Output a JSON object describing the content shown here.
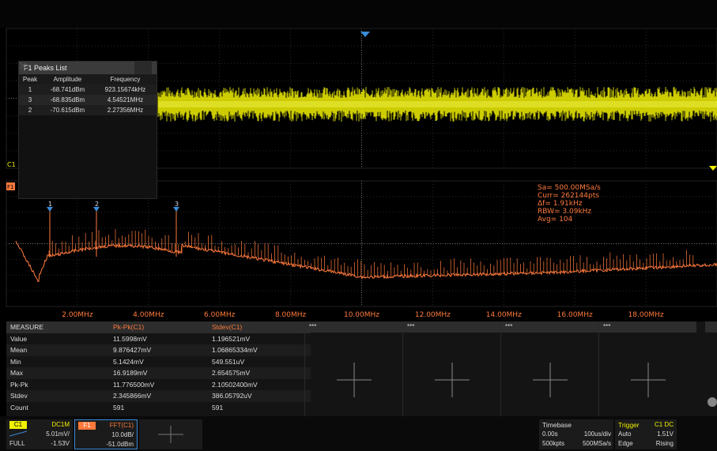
{
  "peaks_list": {
    "title": "F1 Peaks List",
    "columns": [
      "Peak",
      "Amplitude",
      "Frequency"
    ],
    "rows": [
      {
        "peak": "1",
        "amplitude": "-68.741dBm",
        "frequency": "923.15674kHz"
      },
      {
        "peak": "3",
        "amplitude": "-68.835dBm",
        "frequency": "4.54521MHz"
      },
      {
        "peak": "2",
        "amplitude": "-70.615dBm",
        "frequency": "2.27356MHz"
      }
    ]
  },
  "channel_markers": {
    "c1": "C1",
    "f1": "F1"
  },
  "fft_info": {
    "sa": "Sa= 500.00MSa/s",
    "curr": "Curr= 262144pts",
    "df": "Δf= 1.91kHz",
    "rbw": "RBW= 3.09kHz",
    "avg": "Avg= 104"
  },
  "peak_markers": [
    "1",
    "2",
    "3"
  ],
  "freq_axis": [
    "2.00MHz",
    "4.00MHz",
    "6.00MHz",
    "8.00MHz",
    "10.00MHz",
    "12.00MHz",
    "14.00MHz",
    "16.00MHz",
    "18.00MHz"
  ],
  "measure": {
    "header": [
      "MEASURE",
      "Pk-Pk(C1)",
      "Stdev(C1)"
    ],
    "rows": [
      [
        "Value",
        "11.5998mV",
        "1.196521mV"
      ],
      [
        "Mean",
        "9.876427mV",
        "1.06865334mV"
      ],
      [
        "Min",
        "5.1424mV",
        "549.551uV"
      ],
      [
        "Max",
        "16.9189mV",
        "2.654575mV"
      ],
      [
        "Pk-Pk",
        "11.776500mV",
        "2.10502400mV"
      ],
      [
        "Stdev",
        "2.345866mV",
        "386.05792uV"
      ],
      [
        "Count",
        "591",
        "591"
      ]
    ],
    "empty_slots": [
      "***",
      "***",
      "***",
      "***"
    ]
  },
  "bottom": {
    "c1": {
      "tag": "C1",
      "coupling": "DC1M",
      "scale": "5.01mV/",
      "bw": "FULL",
      "offset": "-1.53V"
    },
    "f1": {
      "tag": "F1",
      "source": "FFT(C1)",
      "scale": "10.0dB/",
      "offset": "-51.0dBm"
    },
    "timebase": {
      "title": "Timebase",
      "delay": "0.00s",
      "scale": "100us/div",
      "points": "500kpts",
      "rate": "500MSa/s"
    },
    "trigger": {
      "title": "Trigger",
      "source": "C1 DC",
      "mode": "Auto",
      "level": "1.51V",
      "type": "Edge",
      "slope": "Rising"
    }
  },
  "colors": {
    "c1": "#f0f000",
    "f1": "#ff7a3c",
    "accent_blue": "#3b8bd9"
  }
}
